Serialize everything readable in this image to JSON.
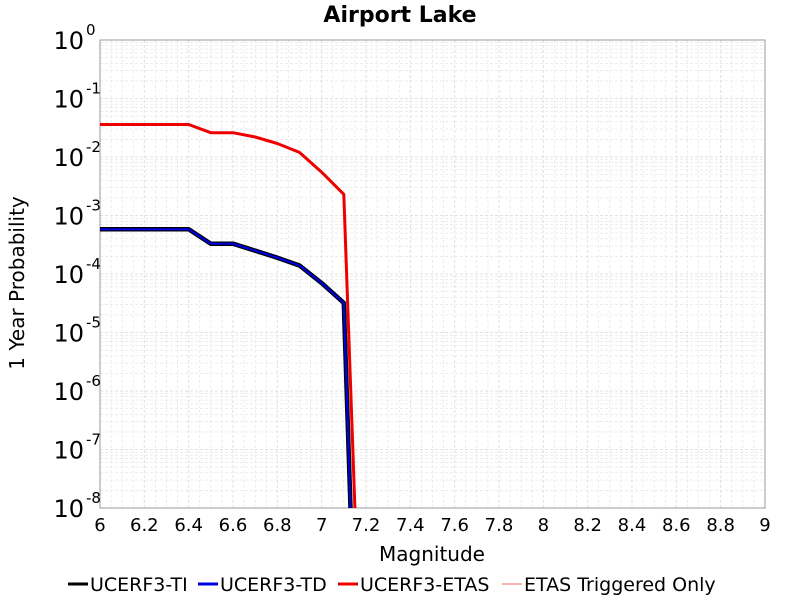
{
  "chart_data": {
    "type": "line",
    "title": "Airport Lake",
    "xlabel": "Magnitude",
    "ylabel": "1 Year Probability",
    "xlim": [
      6,
      9
    ],
    "ylim": [
      1e-08,
      1
    ],
    "yscale": "log",
    "grid": true,
    "legend_position": "bottom",
    "x_ticks": [
      "6",
      "6.2",
      "6.4",
      "6.6",
      "6.8",
      "7",
      "7.2",
      "7.4",
      "7.6",
      "7.8",
      "8",
      "8.2",
      "8.4",
      "8.6",
      "8.8",
      "9"
    ],
    "y_ticks": [
      {
        "base": "10",
        "exp": "0"
      },
      {
        "base": "10",
        "exp": "-1"
      },
      {
        "base": "10",
        "exp": "-2"
      },
      {
        "base": "10",
        "exp": "-3"
      },
      {
        "base": "10",
        "exp": "-4"
      },
      {
        "base": "10",
        "exp": "-5"
      },
      {
        "base": "10",
        "exp": "-6"
      },
      {
        "base": "10",
        "exp": "-7"
      },
      {
        "base": "10",
        "exp": "-8"
      }
    ],
    "series": [
      {
        "name": "UCERF3-TI",
        "color": "#000000",
        "points": [
          [
            6.0,
            0.00058
          ],
          [
            6.1,
            0.00058
          ],
          [
            6.2,
            0.00058
          ],
          [
            6.3,
            0.00058
          ],
          [
            6.4,
            0.00058
          ],
          [
            6.5,
            0.00033
          ],
          [
            6.6,
            0.00033
          ],
          [
            6.7,
            0.00025
          ],
          [
            6.8,
            0.00019
          ],
          [
            6.9,
            0.00014
          ],
          [
            7.0,
            7e-05
          ],
          [
            7.1,
            3.2e-05
          ],
          [
            7.13,
            1e-08
          ]
        ]
      },
      {
        "name": "UCERF3-TD",
        "color": "#0000dd",
        "points": [
          [
            6.0,
            0.00058
          ],
          [
            6.1,
            0.00058
          ],
          [
            6.2,
            0.00058
          ],
          [
            6.3,
            0.00058
          ],
          [
            6.4,
            0.00058
          ],
          [
            6.5,
            0.00033
          ],
          [
            6.6,
            0.00033
          ],
          [
            6.7,
            0.00025
          ],
          [
            6.8,
            0.00019
          ],
          [
            6.9,
            0.00014
          ],
          [
            7.0,
            7e-05
          ],
          [
            7.1,
            3.2e-05
          ],
          [
            7.13,
            1e-08
          ]
        ]
      },
      {
        "name": "UCERF3-ETAS",
        "color": "#ee0000",
        "points": [
          [
            6.0,
            0.036
          ],
          [
            6.1,
            0.036
          ],
          [
            6.2,
            0.036
          ],
          [
            6.3,
            0.036
          ],
          [
            6.4,
            0.036
          ],
          [
            6.5,
            0.026
          ],
          [
            6.6,
            0.026
          ],
          [
            6.7,
            0.022
          ],
          [
            6.8,
            0.017
          ],
          [
            6.9,
            0.012
          ],
          [
            7.0,
            0.0055
          ],
          [
            7.1,
            0.0023
          ],
          [
            7.15,
            1e-08
          ]
        ]
      },
      {
        "name": "ETAS Triggered Only",
        "color": "#ff6060",
        "points": []
      }
    ]
  }
}
